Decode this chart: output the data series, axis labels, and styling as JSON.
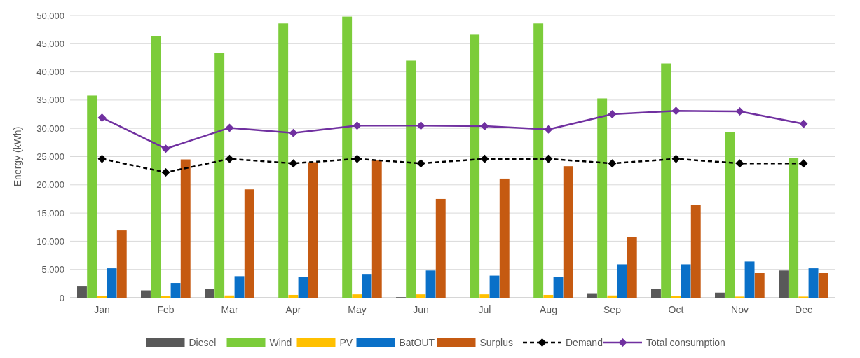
{
  "chart_data": {
    "type": "bar",
    "ylabel": "Energy (kWh)",
    "categories": [
      "Jan",
      "Feb",
      "Mar",
      "Apr",
      "May",
      "Jun",
      "Jul",
      "Aug",
      "Sep",
      "Oct",
      "Nov",
      "Dec"
    ],
    "series": [
      {
        "name": "Diesel",
        "color": "#595959",
        "values": [
          2100,
          1300,
          1500,
          0,
          0,
          100,
          0,
          0,
          800,
          1500,
          900,
          4800
        ]
      },
      {
        "name": "Wind",
        "color": "#7ccc3a",
        "values": [
          35800,
          46300,
          43300,
          48600,
          49800,
          42000,
          46600,
          48600,
          35300,
          41500,
          29300,
          24800
        ]
      },
      {
        "name": "PV",
        "color": "#ffc000",
        "values": [
          300,
          300,
          400,
          500,
          600,
          600,
          600,
          500,
          400,
          300,
          200,
          200
        ]
      },
      {
        "name": "BatOUT",
        "color": "#0a70c8",
        "values": [
          5200,
          2600,
          3800,
          3700,
          4200,
          4800,
          3900,
          3700,
          5900,
          5900,
          6400,
          5200
        ]
      },
      {
        "name": "Surplus",
        "color": "#c55a11",
        "values": [
          11900,
          24500,
          19200,
          24000,
          24300,
          17500,
          21100,
          23300,
          10700,
          16500,
          4400,
          4400
        ]
      },
      {
        "name": "Demand",
        "type": "line",
        "color": "#000000",
        "line_style": "dashed",
        "marker": "diamond",
        "values": [
          24600,
          22200,
          24600,
          23800,
          24600,
          23800,
          24600,
          24600,
          23800,
          24600,
          23800,
          23800
        ]
      },
      {
        "name": "Total consumption",
        "type": "line",
        "color": "#7030a0",
        "line_style": "solid",
        "marker": "diamond",
        "values": [
          31900,
          26400,
          30100,
          29200,
          30500,
          30500,
          30400,
          29800,
          32500,
          33100,
          33000,
          30800
        ]
      }
    ],
    "ylim": [
      0,
      50000
    ],
    "yticks": [
      {
        "value": 0,
        "label": "0"
      },
      {
        "value": 5000,
        "label": "5,000"
      },
      {
        "value": 10000,
        "label": "10,000"
      },
      {
        "value": 15000,
        "label": "15,000"
      },
      {
        "value": 20000,
        "label": "20,000"
      },
      {
        "value": 25000,
        "label": "25,000"
      },
      {
        "value": 30000,
        "label": "30,000"
      },
      {
        "value": 35000,
        "label": "35,000"
      },
      {
        "value": 40000,
        "label": "40,000"
      },
      {
        "value": 45000,
        "label": "45,000"
      },
      {
        "value": 50000,
        "label": "50,000"
      }
    ],
    "grid": "y",
    "legend": "bottom"
  }
}
